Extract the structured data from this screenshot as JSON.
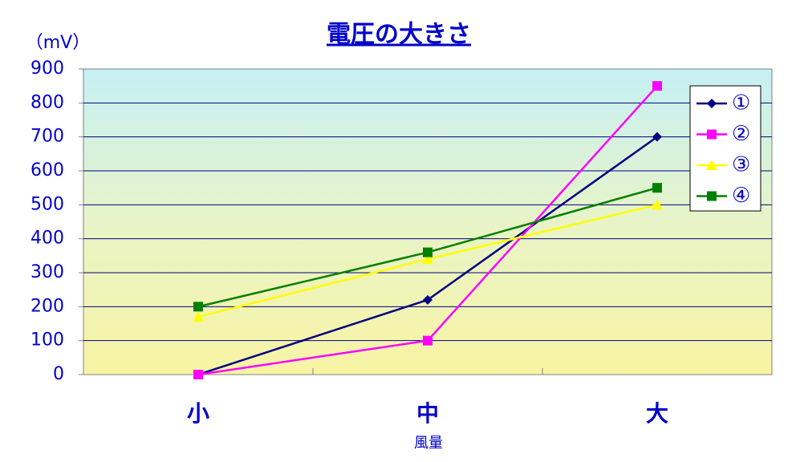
{
  "chart_data": {
    "type": "line",
    "title": "電圧の大きさ",
    "y_label": "（mV）",
    "x_label": "風量",
    "categories": [
      "小",
      "中",
      "大"
    ],
    "series": [
      {
        "name": "①",
        "color": "#000080",
        "marker": "diamond",
        "values": [
          0,
          220,
          700
        ]
      },
      {
        "name": "②",
        "color": "#ff00ff",
        "marker": "square",
        "values": [
          0,
          100,
          850
        ]
      },
      {
        "name": "③",
        "color": "#ffff00",
        "marker": "triangle",
        "values": [
          170,
          340,
          500
        ]
      },
      {
        "name": "④",
        "color": "#008000",
        "marker": "square",
        "values": [
          200,
          360,
          550
        ]
      }
    ],
    "ylim": [
      0,
      900
    ],
    "yticks": [
      0,
      100,
      200,
      300,
      400,
      500,
      600,
      700,
      800,
      900
    ],
    "grid": true,
    "legend": "upper right"
  }
}
